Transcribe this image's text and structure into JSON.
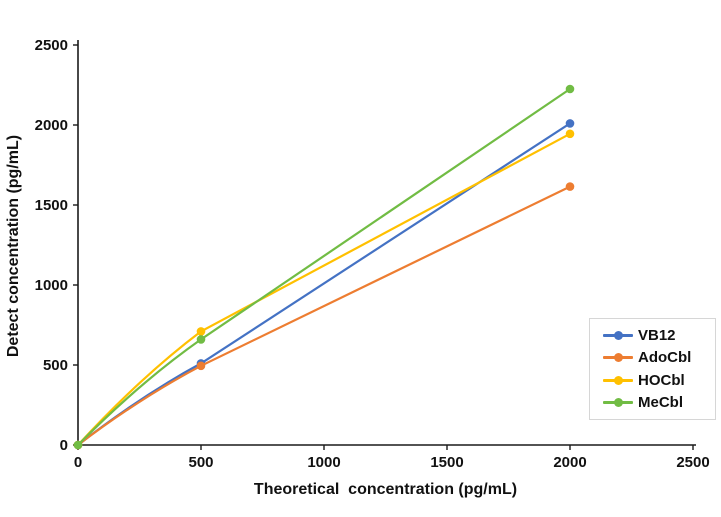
{
  "figure": {
    "background": "#ffffff",
    "axis_color": "#1a1a1a",
    "legend_border_color": "#d6d6d6"
  },
  "chart_data": {
    "type": "line",
    "title": "",
    "xlabel": "Theoretical  concentration (pg/mL)",
    "ylabel": "Detect concentration (pg/mL)",
    "x": [
      0,
      500,
      2000
    ],
    "series": [
      {
        "name": "VB12",
        "color": "#4472C4",
        "values": [
          0,
          510,
          2010
        ]
      },
      {
        "name": "AdoCbl",
        "color": "#ED7D31",
        "values": [
          0,
          495,
          1615
        ]
      },
      {
        "name": "HOCbl",
        "color": "#FFC000",
        "values": [
          0,
          710,
          1945
        ]
      },
      {
        "name": "MeCbl",
        "color": "#71BC44",
        "values": [
          0,
          660,
          2225
        ]
      }
    ],
    "xlim": [
      0,
      2500
    ],
    "ylim": [
      0,
      2500
    ],
    "xticks": [
      0,
      500,
      1000,
      1500,
      2000,
      2500
    ],
    "yticks": [
      0,
      500,
      1000,
      1500,
      2000,
      2500
    ],
    "grid": false,
    "smooth_first_segment": true,
    "legend_position": "inside-right-bottom",
    "legend_entries": [
      "VB12",
      "AdoCbl",
      "HOCbl",
      "MeCbl"
    ]
  }
}
